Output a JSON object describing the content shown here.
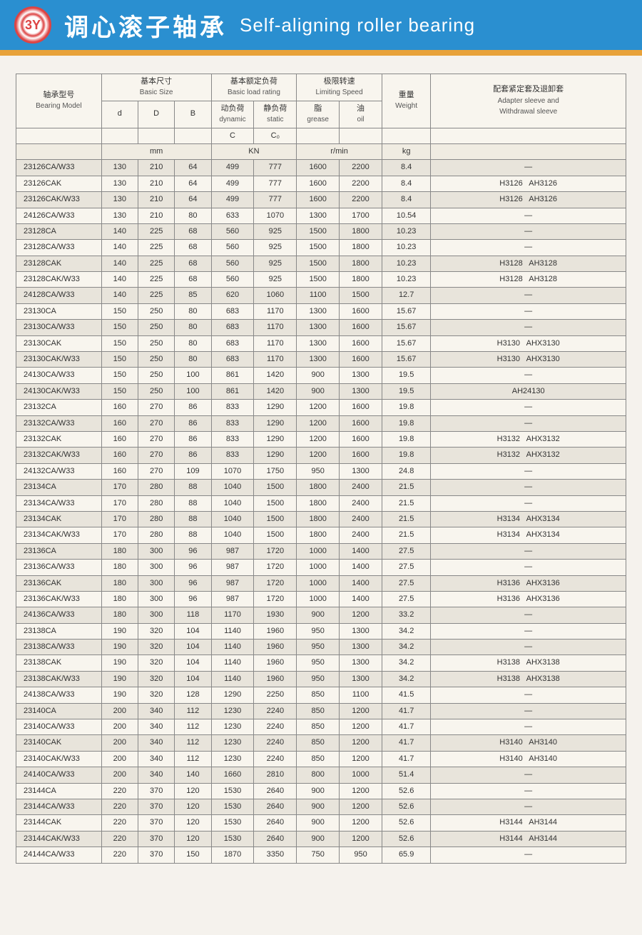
{
  "header": {
    "logo_text": "3Y",
    "title_cn": "调心滚子轴承",
    "title_en": "Self-aligning roller bearing"
  },
  "table": {
    "head": {
      "bearing_model_cn": "轴承型号",
      "bearing_model_en": "Bearing Model",
      "basic_size_cn": "基本尺寸",
      "basic_size_en": "Basic Size",
      "basic_load_cn": "基本额定负荷",
      "basic_load_en": "Basic load rating",
      "limiting_cn": "极限转速",
      "limiting_en": "Limiting Speed",
      "weight_cn": "重量",
      "weight_en": "Weight",
      "sleeve_cn": "配套紧定套及退卸套",
      "sleeve_en1": "Adapter sleeve and",
      "sleeve_en2": "Withdrawal sleeve",
      "dynamic_cn": "动负荷",
      "dynamic_en": "dynamic",
      "static_cn": "静负荷",
      "static_en": "static",
      "grease_cn": "脂",
      "grease_en": "grease",
      "oil_cn": "油",
      "oil_en": "oil",
      "d": "d",
      "D": "D",
      "B": "B",
      "C": "C",
      "C0": "C₀",
      "unit_mm": "mm",
      "unit_kn": "KN",
      "unit_rmin": "r/min",
      "unit_kg": "kg"
    },
    "rows": [
      [
        "23126CA/W33",
        "130",
        "210",
        "64",
        "499",
        "777",
        "1600",
        "2200",
        "8.4",
        "—"
      ],
      [
        "23126CAK",
        "130",
        "210",
        "64",
        "499",
        "777",
        "1600",
        "2200",
        "8.4",
        "H3126   AH3126"
      ],
      [
        "23126CAK/W33",
        "130",
        "210",
        "64",
        "499",
        "777",
        "1600",
        "2200",
        "8.4",
        "H3126   AH3126"
      ],
      [
        "24126CA/W33",
        "130",
        "210",
        "80",
        "633",
        "1070",
        "1300",
        "1700",
        "10.54",
        "—"
      ],
      [
        "23128CA",
        "140",
        "225",
        "68",
        "560",
        "925",
        "1500",
        "1800",
        "10.23",
        "—"
      ],
      [
        "23128CA/W33",
        "140",
        "225",
        "68",
        "560",
        "925",
        "1500",
        "1800",
        "10.23",
        "—"
      ],
      [
        "23128CAK",
        "140",
        "225",
        "68",
        "560",
        "925",
        "1500",
        "1800",
        "10.23",
        "H3128   AH3128"
      ],
      [
        "23128CAK/W33",
        "140",
        "225",
        "68",
        "560",
        "925",
        "1500",
        "1800",
        "10.23",
        "H3128   AH3128"
      ],
      [
        "24128CA/W33",
        "140",
        "225",
        "85",
        "620",
        "1060",
        "1100",
        "1500",
        "12.7",
        "—"
      ],
      [
        "23130CA",
        "150",
        "250",
        "80",
        "683",
        "1170",
        "1300",
        "1600",
        "15.67",
        "—"
      ],
      [
        "23130CA/W33",
        "150",
        "250",
        "80",
        "683",
        "1170",
        "1300",
        "1600",
        "15.67",
        "—"
      ],
      [
        "23130CAK",
        "150",
        "250",
        "80",
        "683",
        "1170",
        "1300",
        "1600",
        "15.67",
        "H3130   AHX3130"
      ],
      [
        "23130CAK/W33",
        "150",
        "250",
        "80",
        "683",
        "1170",
        "1300",
        "1600",
        "15.67",
        "H3130   AHX3130"
      ],
      [
        "24130CA/W33",
        "150",
        "250",
        "100",
        "861",
        "1420",
        "900",
        "1300",
        "19.5",
        "—"
      ],
      [
        "24130CAK/W33",
        "150",
        "250",
        "100",
        "861",
        "1420",
        "900",
        "1300",
        "19.5",
        "AH24130"
      ],
      [
        "23132CA",
        "160",
        "270",
        "86",
        "833",
        "1290",
        "1200",
        "1600",
        "19.8",
        "—"
      ],
      [
        "23132CA/W33",
        "160",
        "270",
        "86",
        "833",
        "1290",
        "1200",
        "1600",
        "19.8",
        "—"
      ],
      [
        "23132CAK",
        "160",
        "270",
        "86",
        "833",
        "1290",
        "1200",
        "1600",
        "19.8",
        "H3132   AHX3132"
      ],
      [
        "23132CAK/W33",
        "160",
        "270",
        "86",
        "833",
        "1290",
        "1200",
        "1600",
        "19.8",
        "H3132   AHX3132"
      ],
      [
        "24132CA/W33",
        "160",
        "270",
        "109",
        "1070",
        "1750",
        "950",
        "1300",
        "24.8",
        "—"
      ],
      [
        "23134CA",
        "170",
        "280",
        "88",
        "1040",
        "1500",
        "1800",
        "2400",
        "21.5",
        "—"
      ],
      [
        "23134CA/W33",
        "170",
        "280",
        "88",
        "1040",
        "1500",
        "1800",
        "2400",
        "21.5",
        "—"
      ],
      [
        "23134CAK",
        "170",
        "280",
        "88",
        "1040",
        "1500",
        "1800",
        "2400",
        "21.5",
        "H3134   AHX3134"
      ],
      [
        "23134CAK/W33",
        "170",
        "280",
        "88",
        "1040",
        "1500",
        "1800",
        "2400",
        "21.5",
        "H3134   AHX3134"
      ],
      [
        "23136CA",
        "180",
        "300",
        "96",
        "987",
        "1720",
        "1000",
        "1400",
        "27.5",
        "—"
      ],
      [
        "23136CA/W33",
        "180",
        "300",
        "96",
        "987",
        "1720",
        "1000",
        "1400",
        "27.5",
        "—"
      ],
      [
        "23136CAK",
        "180",
        "300",
        "96",
        "987",
        "1720",
        "1000",
        "1400",
        "27.5",
        "H3136   AHX3136"
      ],
      [
        "23136CAK/W33",
        "180",
        "300",
        "96",
        "987",
        "1720",
        "1000",
        "1400",
        "27.5",
        "H3136   AHX3136"
      ],
      [
        "24136CA/W33",
        "180",
        "300",
        "118",
        "1170",
        "1930",
        "900",
        "1200",
        "33.2",
        "—"
      ],
      [
        "23138CA",
        "190",
        "320",
        "104",
        "1140",
        "1960",
        "950",
        "1300",
        "34.2",
        "—"
      ],
      [
        "23138CA/W33",
        "190",
        "320",
        "104",
        "1140",
        "1960",
        "950",
        "1300",
        "34.2",
        "—"
      ],
      [
        "23138CAK",
        "190",
        "320",
        "104",
        "1140",
        "1960",
        "950",
        "1300",
        "34.2",
        "H3138   AHX3138"
      ],
      [
        "23138CAK/W33",
        "190",
        "320",
        "104",
        "1140",
        "1960",
        "950",
        "1300",
        "34.2",
        "H3138   AHX3138"
      ],
      [
        "24138CA/W33",
        "190",
        "320",
        "128",
        "1290",
        "2250",
        "850",
        "1100",
        "41.5",
        "—"
      ],
      [
        "23140CA",
        "200",
        "340",
        "112",
        "1230",
        "2240",
        "850",
        "1200",
        "41.7",
        "—"
      ],
      [
        "23140CA/W33",
        "200",
        "340",
        "112",
        "1230",
        "2240",
        "850",
        "1200",
        "41.7",
        "—"
      ],
      [
        "23140CAK",
        "200",
        "340",
        "112",
        "1230",
        "2240",
        "850",
        "1200",
        "41.7",
        "H3140   AH3140"
      ],
      [
        "23140CAK/W33",
        "200",
        "340",
        "112",
        "1230",
        "2240",
        "850",
        "1200",
        "41.7",
        "H3140   AH3140"
      ],
      [
        "24140CA/W33",
        "200",
        "340",
        "140",
        "1660",
        "2810",
        "800",
        "1000",
        "51.4",
        "—"
      ],
      [
        "23144CA",
        "220",
        "370",
        "120",
        "1530",
        "2640",
        "900",
        "1200",
        "52.6",
        "—"
      ],
      [
        "23144CA/W33",
        "220",
        "370",
        "120",
        "1530",
        "2640",
        "900",
        "1200",
        "52.6",
        "—"
      ],
      [
        "23144CAK",
        "220",
        "370",
        "120",
        "1530",
        "2640",
        "900",
        "1200",
        "52.6",
        "H3144   AH3144"
      ],
      [
        "23144CAK/W33",
        "220",
        "370",
        "120",
        "1530",
        "2640",
        "900",
        "1200",
        "52.6",
        "H3144   AH3144"
      ],
      [
        "24144CA/W33",
        "220",
        "370",
        "150",
        "1870",
        "3350",
        "750",
        "950",
        "65.9",
        "—"
      ]
    ],
    "col_widths": [
      "14%",
      "6%",
      "6%",
      "6%",
      "7%",
      "7%",
      "7%",
      "7%",
      "8%",
      "32%"
    ],
    "colors": {
      "header_bg": "#2a8fd0",
      "band": "#e8a23a",
      "row_odd": "#e8e4db",
      "row_even": "#f8f5ee",
      "border": "#888"
    }
  }
}
